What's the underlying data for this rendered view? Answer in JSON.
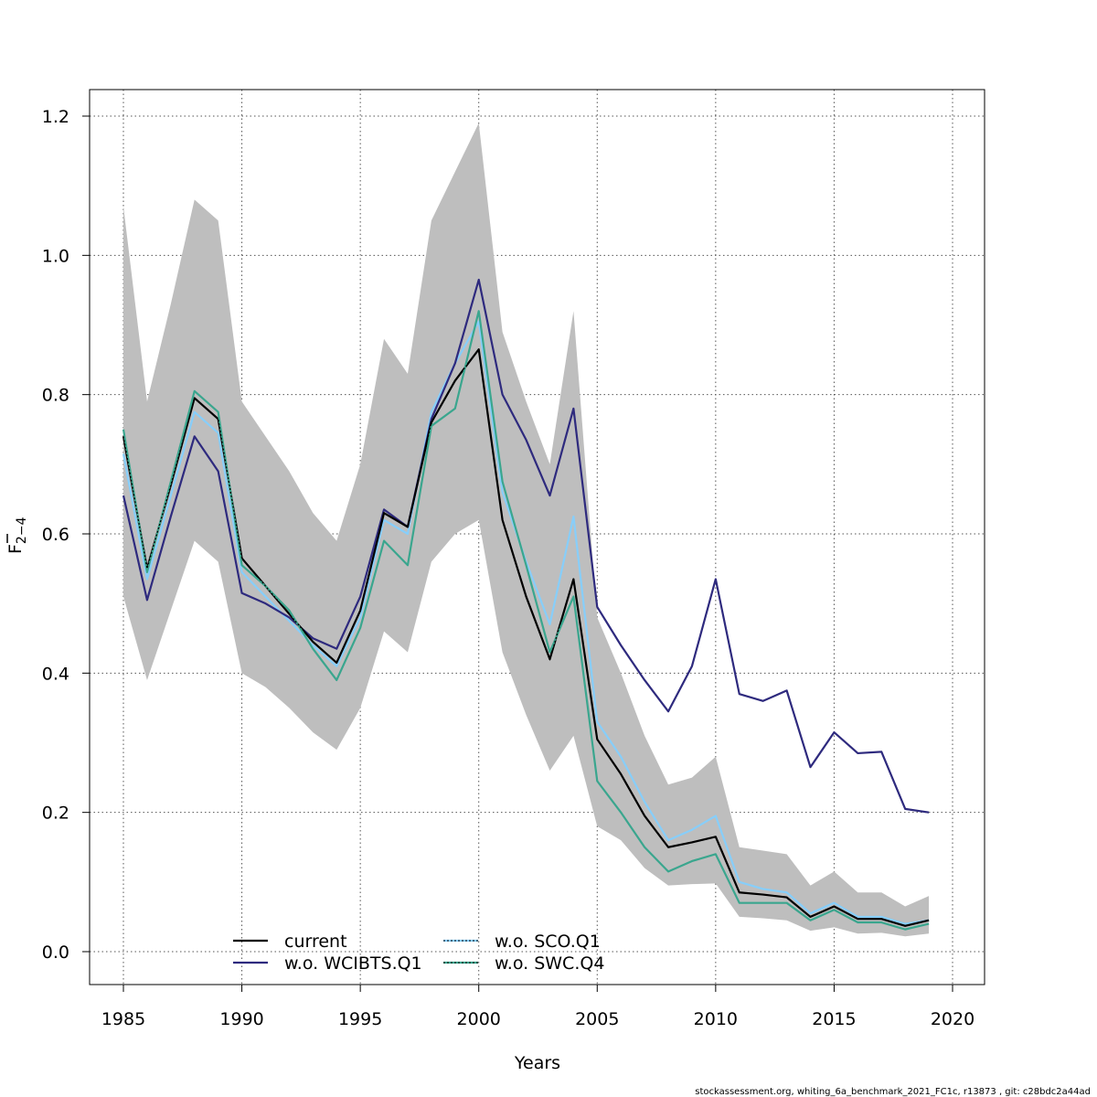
{
  "chart_data": {
    "type": "line",
    "xlabel": "Years",
    "ylabel": "F",
    "ylabel_subscript": "2−4",
    "xlim": [
      1985,
      2020
    ],
    "ylim": [
      0,
      1.2
    ],
    "x_ticks": [
      "1985",
      "1990",
      "1995",
      "2000",
      "2005",
      "2010",
      "2015",
      "2020"
    ],
    "y_ticks": [
      "0.0",
      "0.2",
      "0.4",
      "0.6",
      "0.8",
      "1.0",
      "1.2"
    ],
    "grid": true,
    "legend_position": "bottom-center",
    "x": [
      1985,
      1986,
      1987,
      1988,
      1989,
      1990,
      1991,
      1992,
      1993,
      1994,
      1995,
      1996,
      1997,
      1998,
      1999,
      2000,
      2001,
      2002,
      2003,
      2004,
      2005,
      2006,
      2007,
      2008,
      2009,
      2010,
      2011,
      2012,
      2013,
      2014,
      2015,
      2016,
      2017,
      2018,
      2019
    ],
    "band": {
      "color": "#bebebe",
      "upper": [
        1.07,
        0.79,
        0.93,
        1.08,
        1.05,
        0.79,
        0.74,
        0.69,
        0.63,
        0.59,
        0.7,
        0.88,
        0.83,
        1.05,
        1.12,
        1.19,
        0.89,
        0.79,
        0.7,
        0.92,
        0.48,
        0.4,
        0.31,
        0.24,
        0.25,
        0.28,
        0.15,
        0.145,
        0.14,
        0.095,
        0.115,
        0.085,
        0.085,
        0.065,
        0.08
      ],
      "lower": [
        0.51,
        0.39,
        0.49,
        0.59,
        0.56,
        0.4,
        0.38,
        0.35,
        0.315,
        0.29,
        0.35,
        0.46,
        0.43,
        0.56,
        0.6,
        0.62,
        0.43,
        0.34,
        0.26,
        0.31,
        0.18,
        0.16,
        0.12,
        0.095,
        0.097,
        0.098,
        0.05,
        0.048,
        0.045,
        0.03,
        0.035,
        0.026,
        0.027,
        0.022,
        0.026
      ]
    },
    "series": [
      {
        "name": "current",
        "color": "#000000",
        "dashed": false,
        "values": [
          0.74,
          0.55,
          0.67,
          0.795,
          0.765,
          0.565,
          0.525,
          0.485,
          0.445,
          0.415,
          0.49,
          0.63,
          0.61,
          0.76,
          0.82,
          0.865,
          0.62,
          0.51,
          0.42,
          0.535,
          0.305,
          0.255,
          0.195,
          0.15,
          0.157,
          0.165,
          0.085,
          0.082,
          0.078,
          0.05,
          0.065,
          0.047,
          0.047,
          0.037,
          0.045
        ]
      },
      {
        "name": "w.o. WCIBTS.Q1",
        "color": "#2e2a7e",
        "dashed": false,
        "values": [
          0.655,
          0.505,
          0.625,
          0.74,
          0.69,
          0.515,
          0.5,
          0.48,
          0.45,
          0.435,
          0.51,
          0.635,
          0.61,
          0.765,
          0.845,
          0.965,
          0.8,
          0.735,
          0.655,
          0.78,
          0.495,
          0.44,
          0.39,
          0.345,
          0.41,
          0.535,
          0.37,
          0.36,
          0.375,
          0.265,
          0.315,
          0.285,
          0.287,
          0.205,
          0.2
        ]
      },
      {
        "name": "w.o. SCO.Q1",
        "color": "#87cefa",
        "dashed": true,
        "values": [
          0.715,
          0.535,
          0.655,
          0.775,
          0.745,
          0.545,
          0.51,
          0.475,
          0.44,
          0.41,
          0.48,
          0.62,
          0.6,
          0.775,
          0.845,
          0.905,
          0.66,
          0.56,
          0.47,
          0.625,
          0.33,
          0.28,
          0.215,
          0.16,
          0.175,
          0.195,
          0.1,
          0.09,
          0.085,
          0.055,
          0.07,
          0.05,
          0.05,
          0.04,
          0.045
        ]
      },
      {
        "name": "w.o. SWC.Q4",
        "color": "#3aa68e",
        "dashed": true,
        "values": [
          0.75,
          0.545,
          0.675,
          0.805,
          0.775,
          0.555,
          0.525,
          0.49,
          0.435,
          0.39,
          0.465,
          0.59,
          0.555,
          0.755,
          0.78,
          0.92,
          0.675,
          0.555,
          0.43,
          0.51,
          0.245,
          0.2,
          0.15,
          0.115,
          0.13,
          0.14,
          0.07,
          0.07,
          0.07,
          0.045,
          0.06,
          0.042,
          0.042,
          0.032,
          0.04
        ]
      }
    ]
  },
  "footer": "stockassessment.org, whiting_6a_benchmark_2021_FC1c, r13873 , git: c28bdc2a44ad"
}
